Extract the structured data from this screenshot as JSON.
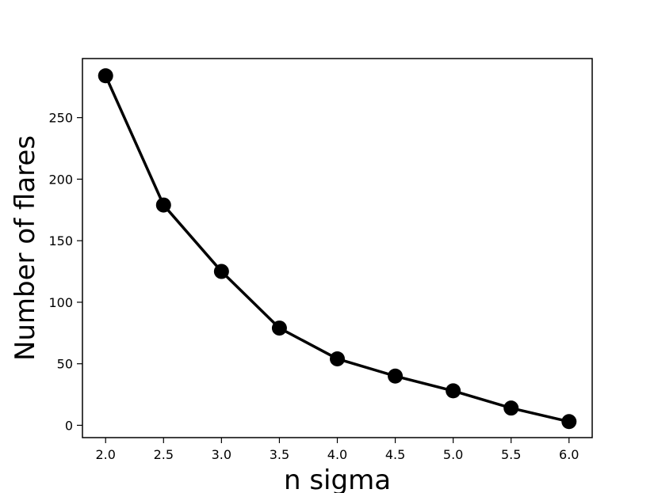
{
  "chart_data": {
    "type": "line",
    "title": "",
    "xlabel": "n sigma",
    "ylabel": "Number of flares",
    "x": [
      2.0,
      2.5,
      3.0,
      3.5,
      4.0,
      4.5,
      5.0,
      5.5,
      6.0
    ],
    "series": [
      {
        "values": [
          284,
          179,
          125,
          79,
          54,
          40,
          28,
          14,
          3
        ]
      }
    ],
    "xlim": [
      1.8,
      6.2
    ],
    "ylim": [
      -10,
      298
    ],
    "xticks": [
      "2.0",
      "2.5",
      "3.0",
      "3.5",
      "4.0",
      "4.5",
      "5.0",
      "5.5",
      "6.0"
    ],
    "yticks": [
      "0",
      "50",
      "100",
      "150",
      "200",
      "250"
    ],
    "grid": false,
    "legend": "none",
    "line_color": "#000000",
    "marker_color": "#000000"
  }
}
